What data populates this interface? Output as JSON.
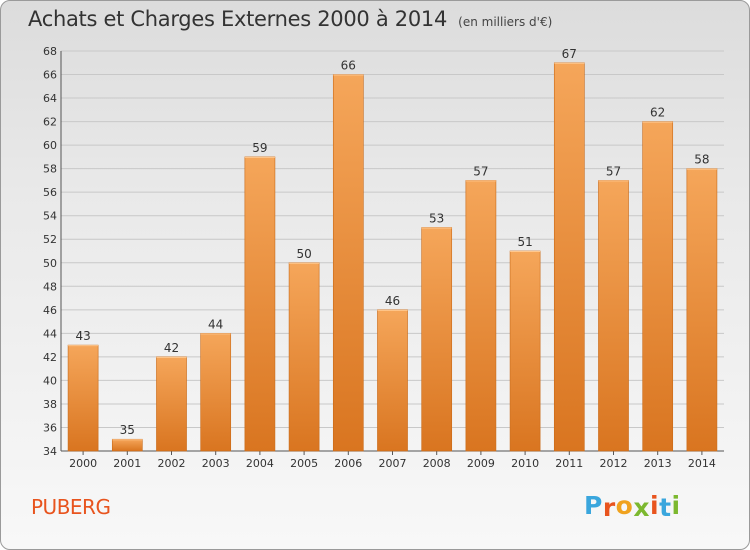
{
  "header": {
    "title": "Achats et Charges Externes 2000 à 2014",
    "unit": "(en milliers d'€)"
  },
  "footer": {
    "commune": "PUBERG",
    "logo_letters": [
      "P",
      "r",
      "o",
      "x",
      "i",
      "t",
      "i"
    ]
  },
  "colors": {
    "bar_light": "#f5a65a",
    "bar_dark": "#d97520",
    "commune": "#e8541e",
    "logo": [
      "#3aa6dd",
      "#e8541e",
      "#f0a21e",
      "#7cb82f",
      "#e8541e",
      "#3aa6dd",
      "#7cb82f"
    ]
  },
  "chart_data": {
    "type": "bar",
    "title": "Achats et Charges Externes 2000 à 2014",
    "categories": [
      "2000",
      "2001",
      "2002",
      "2003",
      "2004",
      "2005",
      "2006",
      "2007",
      "2008",
      "2009",
      "2010",
      "2011",
      "2012",
      "2013",
      "2014"
    ],
    "values": [
      43,
      35,
      42,
      44,
      59,
      50,
      66,
      46,
      53,
      57,
      51,
      67,
      57,
      62,
      58
    ],
    "ylim": [
      34,
      68
    ],
    "yticks": [
      34,
      36,
      38,
      40,
      42,
      44,
      46,
      48,
      50,
      52,
      54,
      56,
      58,
      60,
      62,
      64,
      66,
      68
    ],
    "grid": true,
    "data_labels": true
  }
}
